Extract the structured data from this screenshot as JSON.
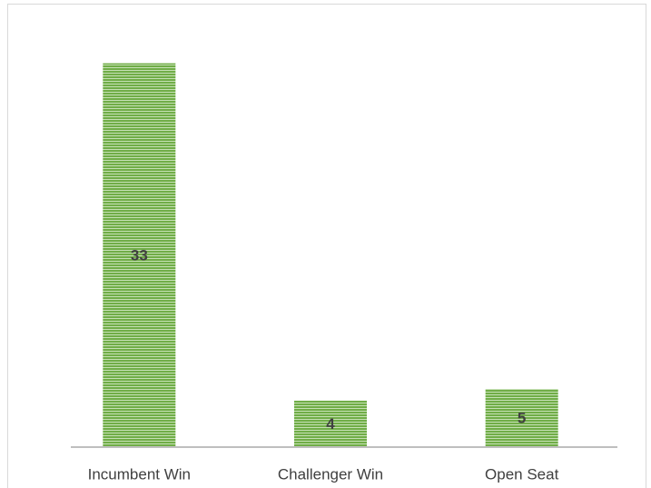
{
  "chart_data": {
    "type": "bar",
    "categories": [
      "Incumbent Win",
      "Challenger Win",
      "Open Seat"
    ],
    "values": [
      33,
      4,
      5
    ],
    "color": "#70ad47",
    "ylim": [
      0,
      35
    ]
  }
}
